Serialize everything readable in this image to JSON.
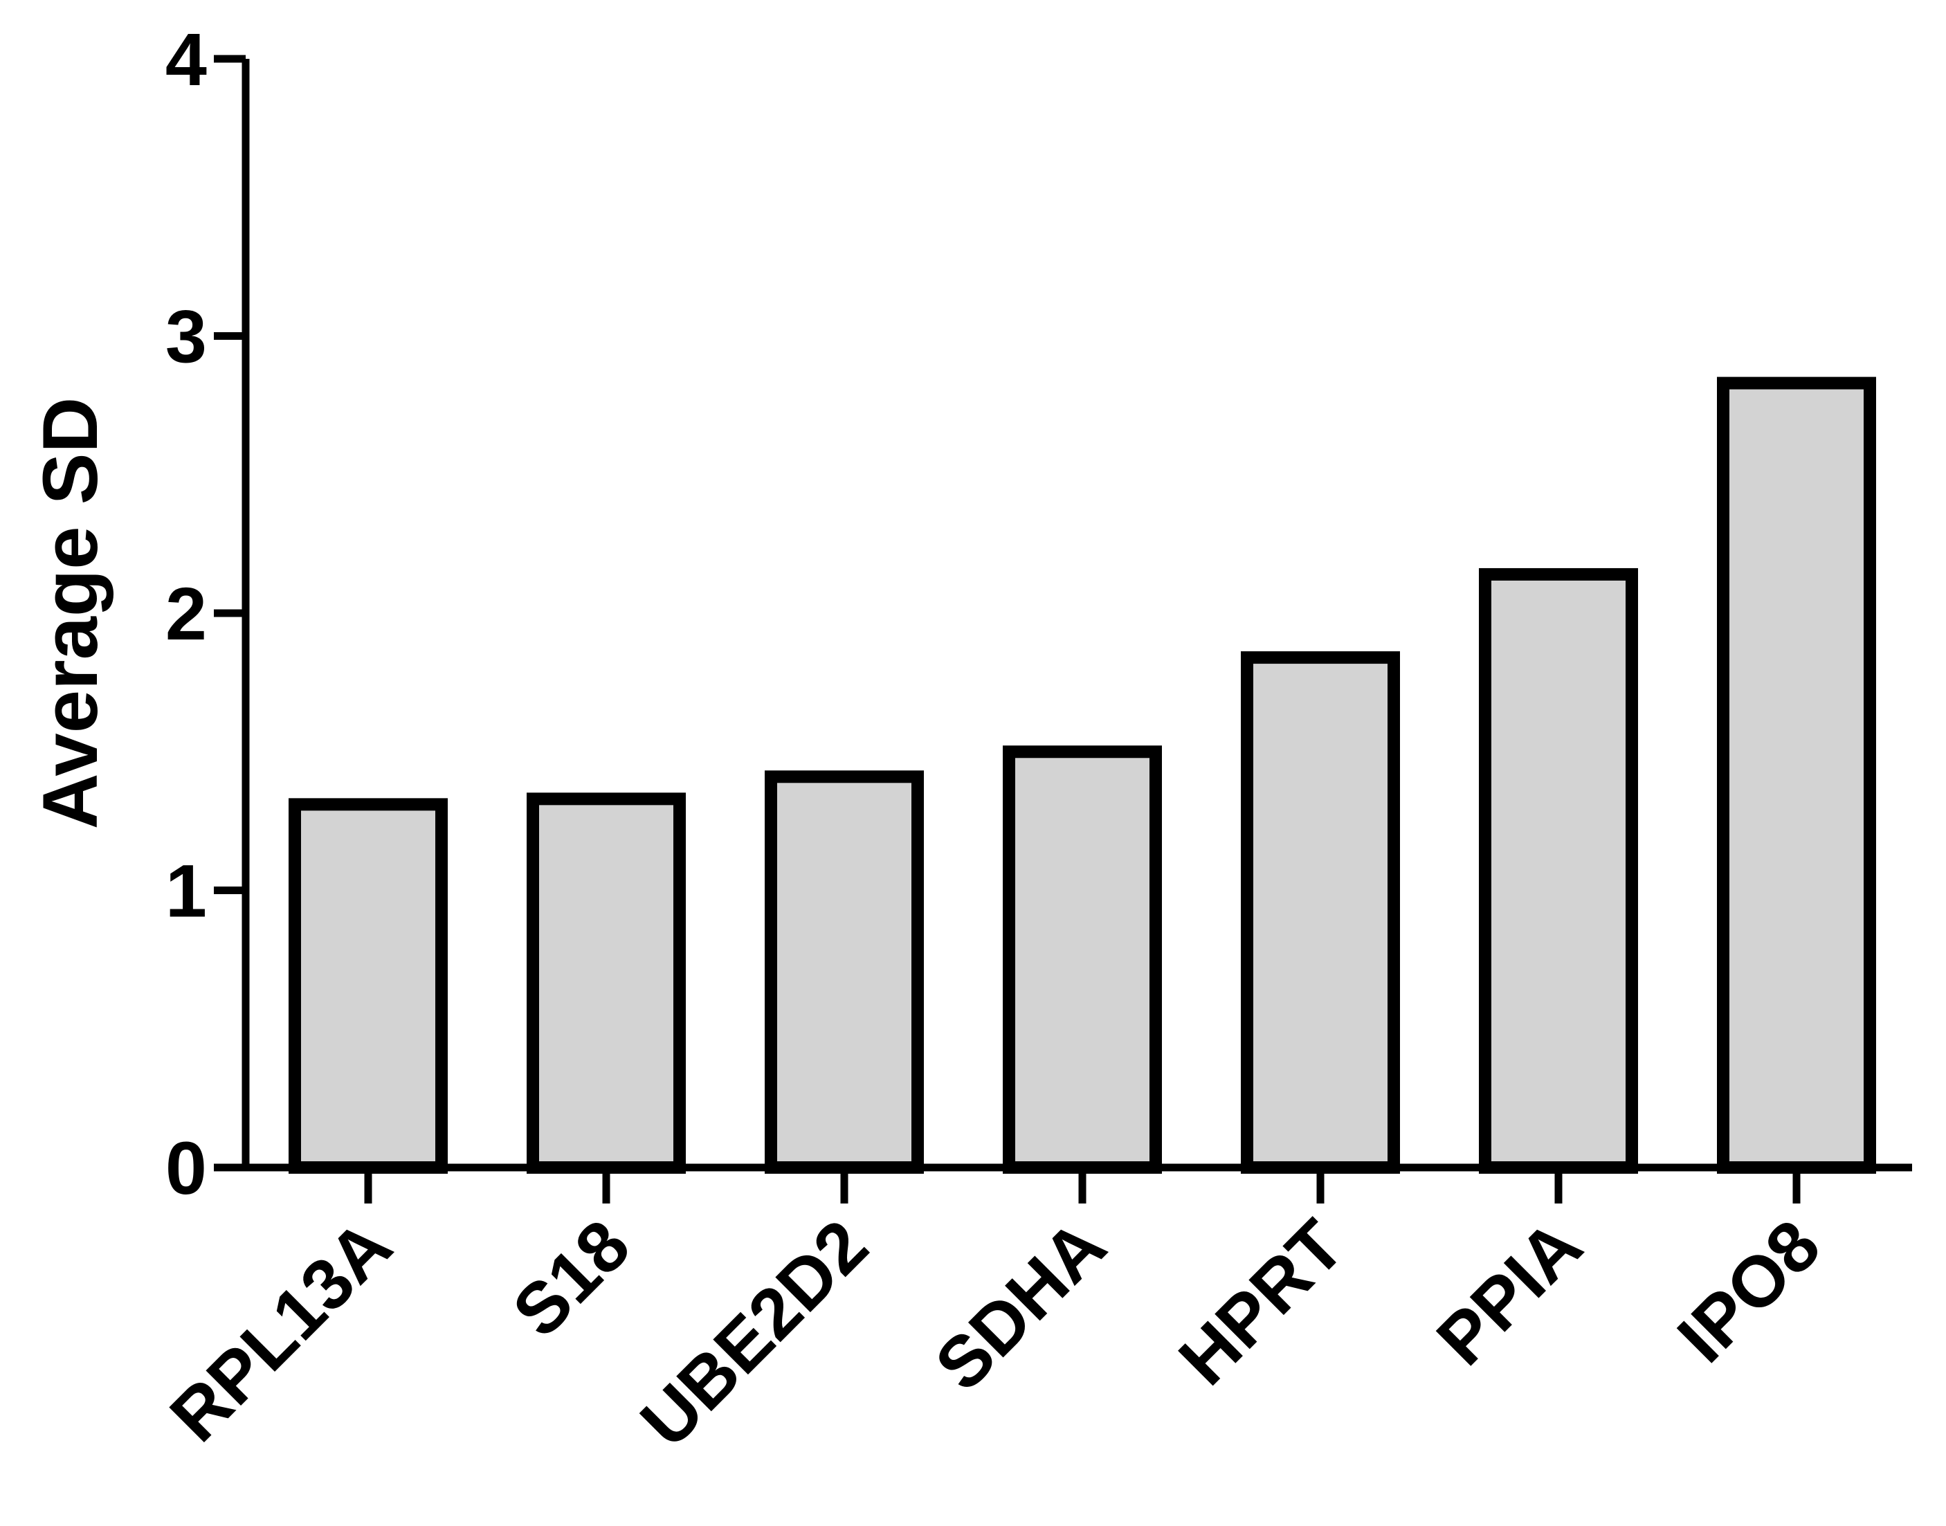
{
  "chart_data": {
    "type": "bar",
    "y_label": "Average SD",
    "categories": [
      "RPL13A",
      "S18",
      "UBE2D2",
      "SDHA",
      "HPRT",
      "PPIA",
      "IPO8"
    ],
    "values": [
      1.31,
      1.33,
      1.41,
      1.5,
      1.84,
      2.14,
      2.83
    ],
    "color": "#d3d3d3",
    "edge_color": "#000000",
    "ylim": [
      0,
      4
    ],
    "yticks": [
      0,
      1,
      2,
      3,
      4
    ],
    "grid": false
  }
}
